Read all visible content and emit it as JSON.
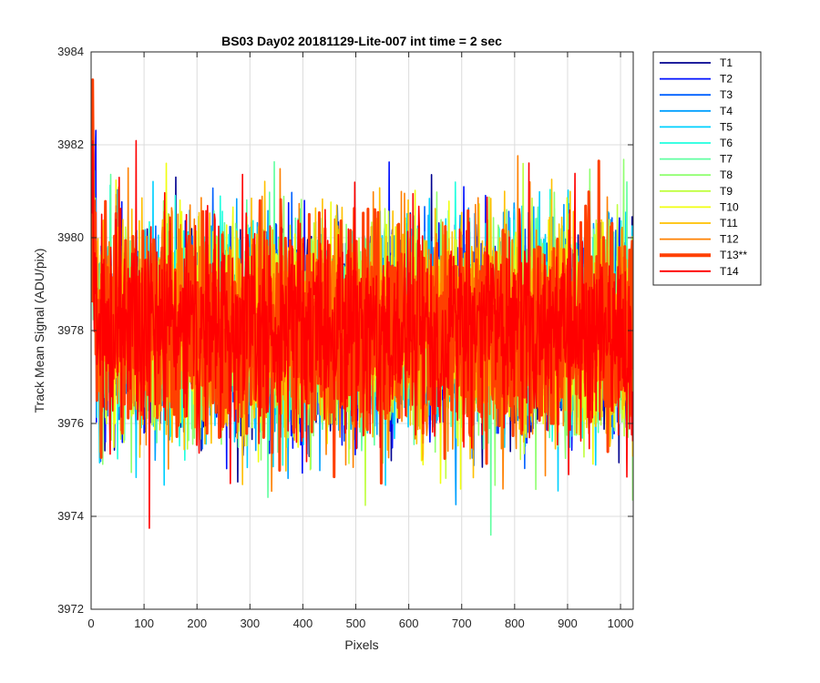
{
  "chart_data": {
    "type": "line",
    "title": "BS03 Day02 20181129-Lite-007 int time = 2 sec",
    "xlabel": "Pixels",
    "ylabel": "Track Mean Signal (ADU/pix)",
    "xlim": [
      0,
      1024
    ],
    "ylim": [
      3972,
      3984
    ],
    "xticks": [
      0,
      100,
      200,
      300,
      400,
      500,
      600,
      700,
      800,
      900,
      1000
    ],
    "yticks": [
      3972,
      3974,
      3976,
      3978,
      3980,
      3982,
      3984
    ],
    "grid": true,
    "legend_position": "outside-top-right",
    "n_points_per_series": 1024,
    "series": [
      {
        "name": "T1",
        "color": "#00008f",
        "mean": 3978.0,
        "highlight": false
      },
      {
        "name": "T2",
        "color": "#0010ff",
        "mean": 3978.0,
        "highlight": false
      },
      {
        "name": "T3",
        "color": "#0060ff",
        "mean": 3978.0,
        "highlight": false
      },
      {
        "name": "T4",
        "color": "#00a0ff",
        "mean": 3978.0,
        "highlight": false
      },
      {
        "name": "T5",
        "color": "#00d0ff",
        "mean": 3978.0,
        "highlight": false
      },
      {
        "name": "T6",
        "color": "#20ffdf",
        "mean": 3978.0,
        "highlight": false
      },
      {
        "name": "T7",
        "color": "#60ffa0",
        "mean": 3978.0,
        "highlight": false
      },
      {
        "name": "T8",
        "color": "#90ff70",
        "mean": 3978.0,
        "highlight": false
      },
      {
        "name": "T9",
        "color": "#c0ff40",
        "mean": 3978.0,
        "highlight": false
      },
      {
        "name": "T10",
        "color": "#f0ff10",
        "mean": 3978.0,
        "highlight": false
      },
      {
        "name": "T11",
        "color": "#ffc000",
        "mean": 3978.0,
        "highlight": false
      },
      {
        "name": "T12",
        "color": "#ff8000",
        "mean": 3978.0,
        "highlight": false
      },
      {
        "name": "T13**",
        "color": "#ff4000",
        "mean": 3978.0,
        "highlight": true
      },
      {
        "name": "T14",
        "color": "#ff0000",
        "mean": 3978.0,
        "highlight": false
      }
    ]
  }
}
